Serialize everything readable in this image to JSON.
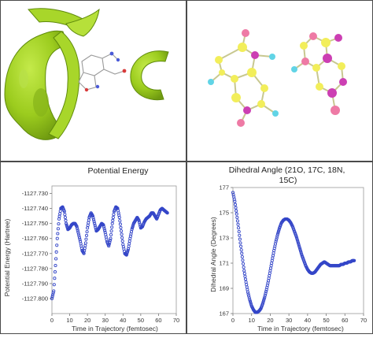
{
  "panels": {
    "docking": {
      "name": "molecular-surface-render"
    },
    "molecules": {
      "name": "ball-and-stick-render"
    }
  },
  "colors": {
    "surface": "#9ccc1e",
    "surface_dark": "#6f9a10",
    "series": "#3446c8",
    "atom_yellow": "#f2ee5a",
    "atom_magenta": "#cc3fb3",
    "atom_pink": "#ee7aa5",
    "atom_cyan": "#61d4e6"
  },
  "chart_data": [
    {
      "type": "scatter",
      "title": "Potential Energy",
      "xlabel": "Time in Trajectory (femtosec)",
      "ylabel": "Potential Energy (Hartree)",
      "xlim": [
        0,
        70
      ],
      "ylim": [
        -1127.81,
        -1127.725
      ],
      "xticks": [
        0,
        10,
        20,
        30,
        40,
        50,
        60,
        70
      ],
      "yticks": [
        -1127.73,
        -1127.74,
        -1127.75,
        -1127.76,
        -1127.77,
        -1127.78,
        -1127.79,
        -1127.8
      ],
      "ytick_labels": [
        "-1127.730",
        "-1127.740",
        "-1127.750",
        "-1127.760",
        "-1127.770",
        "-1127.780",
        "-1127.790",
        "-1127.800"
      ],
      "series": [
        {
          "x": [
            0,
            1,
            2,
            3,
            4,
            5,
            6,
            7,
            8,
            9,
            10,
            11,
            12,
            13,
            14,
            15,
            16,
            17,
            18,
            19,
            20,
            21,
            22,
            23,
            24,
            25,
            26,
            27,
            28,
            29,
            30,
            31,
            32,
            33,
            34,
            35,
            36,
            37,
            38,
            39,
            40,
            41,
            42,
            43,
            44,
            45,
            46,
            47,
            48,
            49,
            50,
            51,
            52,
            53,
            54,
            55,
            56,
            57,
            58,
            59,
            60,
            61,
            62,
            63,
            64,
            65
          ],
          "y": [
            -1127.8,
            -1127.795,
            -1127.778,
            -1127.76,
            -1127.747,
            -1127.74,
            -1127.739,
            -1127.742,
            -1127.75,
            -1127.754,
            -1127.753,
            -1127.751,
            -1127.75,
            -1127.75,
            -1127.752,
            -1127.757,
            -1127.762,
            -1127.768,
            -1127.77,
            -1127.763,
            -1127.753,
            -1127.746,
            -1127.743,
            -1127.745,
            -1127.75,
            -1127.755,
            -1127.754,
            -1127.752,
            -1127.75,
            -1127.751,
            -1127.756,
            -1127.762,
            -1127.765,
            -1127.76,
            -1127.75,
            -1127.742,
            -1127.739,
            -1127.74,
            -1127.746,
            -1127.755,
            -1127.764,
            -1127.77,
            -1127.771,
            -1127.767,
            -1127.76,
            -1127.754,
            -1127.75,
            -1127.748,
            -1127.746,
            -1127.748,
            -1127.753,
            -1127.752,
            -1127.749,
            -1127.747,
            -1127.746,
            -1127.745,
            -1127.743,
            -1127.743,
            -1127.745,
            -1127.747,
            -1127.744,
            -1127.741,
            -1127.74,
            -1127.741,
            -1127.742,
            -1127.743
          ]
        }
      ]
    },
    {
      "type": "scatter",
      "title": "Dihedral Angle (21O, 17C, 18N, 15C)",
      "xlabel": "Time in Trajectory (femtosec)",
      "ylabel": "Dihedral Angle (Degrees)",
      "xlim": [
        0,
        70
      ],
      "ylim": [
        167,
        177
      ],
      "xticks": [
        0,
        10,
        20,
        30,
        40,
        50,
        60,
        70
      ],
      "yticks": [
        167,
        169,
        171,
        173,
        175,
        177
      ],
      "ytick_labels": [
        "167",
        "169",
        "171",
        "173",
        "175",
        "177"
      ],
      "series": [
        {
          "x": [
            0,
            1,
            2,
            3,
            4,
            5,
            6,
            7,
            8,
            9,
            10,
            11,
            12,
            13,
            14,
            15,
            16,
            17,
            18,
            19,
            20,
            21,
            22,
            23,
            24,
            25,
            26,
            27,
            28,
            29,
            30,
            31,
            32,
            33,
            34,
            35,
            36,
            37,
            38,
            39,
            40,
            41,
            42,
            43,
            44,
            45,
            46,
            47,
            48,
            49,
            50,
            51,
            52,
            53,
            54,
            55,
            56,
            57,
            58,
            59,
            60,
            61,
            62,
            63,
            64,
            65
          ],
          "y": [
            176.6,
            175.9,
            174.9,
            173.8,
            172.6,
            171.5,
            170.4,
            169.5,
            168.7,
            168.1,
            167.6,
            167.3,
            167.1,
            167.1,
            167.2,
            167.4,
            167.8,
            168.3,
            168.9,
            169.6,
            170.4,
            171.2,
            172.0,
            172.7,
            173.3,
            173.8,
            174.2,
            174.4,
            174.5,
            174.5,
            174.4,
            174.2,
            173.9,
            173.5,
            173.1,
            172.6,
            172.1,
            171.6,
            171.2,
            170.8,
            170.5,
            170.3,
            170.2,
            170.2,
            170.3,
            170.5,
            170.7,
            170.9,
            171.0,
            171.1,
            171.0,
            170.9,
            170.8,
            170.8,
            170.8,
            170.8,
            170.8,
            170.8,
            170.9,
            170.9,
            171.0,
            171.0,
            171.1,
            171.1,
            171.2,
            171.2
          ]
        }
      ]
    }
  ]
}
